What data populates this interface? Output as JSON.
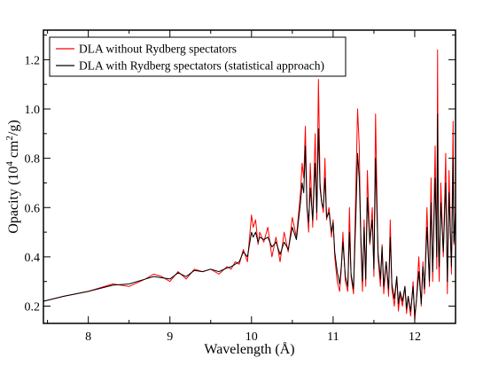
{
  "chart_data": {
    "type": "line",
    "xlabel": "Wavelength (Å)",
    "ylabel": {
      "prefix": "Opacity (10",
      "sup1": "4",
      "mid": " cm",
      "sup2": "2",
      "suffix": "/g)"
    },
    "xlim": [
      7.45,
      12.5
    ],
    "ylim": [
      0.13,
      1.32
    ],
    "xticks": [
      8,
      9,
      10,
      11,
      12
    ],
    "yticks": [
      0.2,
      0.4,
      0.6,
      0.8,
      1.0,
      1.2
    ],
    "ytick_labels": [
      "0.2",
      "0.4",
      "0.6",
      "0.8",
      "1.0",
      "1.2"
    ],
    "legend_position": "top-left",
    "grid": false,
    "series": [
      {
        "name": "DLA without Rydberg spectators",
        "color": "#ff0000",
        "x": [
          7.45,
          7.7,
          8.0,
          8.3,
          8.5,
          8.7,
          8.8,
          8.9,
          9.0,
          9.1,
          9.2,
          9.3,
          9.4,
          9.5,
          9.6,
          9.7,
          9.75,
          9.8,
          9.85,
          9.9,
          9.95,
          10.0,
          10.02,
          10.05,
          10.08,
          10.1,
          10.15,
          10.2,
          10.25,
          10.3,
          10.35,
          10.4,
          10.45,
          10.5,
          10.55,
          10.6,
          10.62,
          10.64,
          10.66,
          10.68,
          10.7,
          10.72,
          10.75,
          10.78,
          10.8,
          10.82,
          10.84,
          10.86,
          10.88,
          10.9,
          10.92,
          10.95,
          10.98,
          11.0,
          11.02,
          11.05,
          11.08,
          11.1,
          11.12,
          11.15,
          11.18,
          11.2,
          11.22,
          11.25,
          11.28,
          11.3,
          11.32,
          11.34,
          11.36,
          11.38,
          11.4,
          11.42,
          11.45,
          11.48,
          11.5,
          11.52,
          11.55,
          11.58,
          11.6,
          11.62,
          11.65,
          11.68,
          11.7,
          11.72,
          11.75,
          11.78,
          11.8,
          11.82,
          11.85,
          11.88,
          11.9,
          11.92,
          11.95,
          11.98,
          12.0,
          12.02,
          12.05,
          12.08,
          12.1,
          12.12,
          12.15,
          12.18,
          12.2,
          12.22,
          12.25,
          12.27,
          12.28,
          12.29,
          12.3,
          12.32,
          12.35,
          12.38,
          12.4,
          12.42,
          12.45,
          12.47,
          12.48,
          12.5
        ],
        "values": [
          0.22,
          0.24,
          0.26,
          0.29,
          0.28,
          0.31,
          0.33,
          0.32,
          0.3,
          0.34,
          0.31,
          0.35,
          0.34,
          0.35,
          0.33,
          0.36,
          0.35,
          0.38,
          0.37,
          0.43,
          0.38,
          0.57,
          0.52,
          0.55,
          0.45,
          0.5,
          0.46,
          0.52,
          0.4,
          0.48,
          0.38,
          0.5,
          0.42,
          0.56,
          0.48,
          0.66,
          0.78,
          0.72,
          0.93,
          0.6,
          0.5,
          0.78,
          0.52,
          0.9,
          0.55,
          1.12,
          0.7,
          0.62,
          0.58,
          0.8,
          0.55,
          0.6,
          0.48,
          0.55,
          0.4,
          0.3,
          0.26,
          0.35,
          0.5,
          0.3,
          0.26,
          0.6,
          0.32,
          0.25,
          0.7,
          1.0,
          0.85,
          0.45,
          0.26,
          0.55,
          0.28,
          0.75,
          0.45,
          0.6,
          0.32,
          0.98,
          0.4,
          0.28,
          0.45,
          0.25,
          0.38,
          0.24,
          0.55,
          0.27,
          0.2,
          0.32,
          0.18,
          0.25,
          0.2,
          0.28,
          0.17,
          0.24,
          0.16,
          0.3,
          0.14,
          0.22,
          0.4,
          0.2,
          0.38,
          0.25,
          0.6,
          0.28,
          0.72,
          0.3,
          0.85,
          0.35,
          1.24,
          0.45,
          0.3,
          0.7,
          0.4,
          0.82,
          0.25,
          0.75,
          0.33,
          0.95,
          0.45,
          0.6
        ]
      },
      {
        "name": "DLA with Rydberg spectators (statistical approach)",
        "color": "#000000",
        "x": [
          7.45,
          7.7,
          8.0,
          8.3,
          8.5,
          8.7,
          8.8,
          8.9,
          9.0,
          9.1,
          9.2,
          9.3,
          9.4,
          9.5,
          9.6,
          9.7,
          9.75,
          9.8,
          9.85,
          9.9,
          9.95,
          10.0,
          10.02,
          10.05,
          10.08,
          10.1,
          10.15,
          10.2,
          10.25,
          10.3,
          10.35,
          10.4,
          10.45,
          10.5,
          10.55,
          10.6,
          10.62,
          10.64,
          10.66,
          10.68,
          10.7,
          10.72,
          10.75,
          10.78,
          10.8,
          10.82,
          10.84,
          10.86,
          10.88,
          10.9,
          10.92,
          10.95,
          10.98,
          11.0,
          11.02,
          11.05,
          11.08,
          11.1,
          11.12,
          11.15,
          11.18,
          11.2,
          11.22,
          11.25,
          11.28,
          11.3,
          11.32,
          11.34,
          11.36,
          11.38,
          11.4,
          11.42,
          11.45,
          11.48,
          11.5,
          11.52,
          11.55,
          11.58,
          11.6,
          11.62,
          11.65,
          11.68,
          11.7,
          11.72,
          11.75,
          11.78,
          11.8,
          11.82,
          11.85,
          11.88,
          11.9,
          11.92,
          11.95,
          11.98,
          12.0,
          12.02,
          12.05,
          12.08,
          12.1,
          12.12,
          12.15,
          12.18,
          12.2,
          12.22,
          12.25,
          12.27,
          12.28,
          12.29,
          12.3,
          12.32,
          12.35,
          12.38,
          12.4,
          12.42,
          12.45,
          12.47,
          12.48,
          12.5
        ],
        "values": [
          0.22,
          0.24,
          0.26,
          0.285,
          0.29,
          0.31,
          0.32,
          0.315,
          0.31,
          0.335,
          0.32,
          0.345,
          0.34,
          0.35,
          0.34,
          0.355,
          0.36,
          0.37,
          0.38,
          0.42,
          0.4,
          0.5,
          0.48,
          0.5,
          0.46,
          0.48,
          0.47,
          0.48,
          0.44,
          0.46,
          0.41,
          0.46,
          0.43,
          0.52,
          0.47,
          0.62,
          0.7,
          0.66,
          0.85,
          0.6,
          0.54,
          0.68,
          0.55,
          0.78,
          0.58,
          0.92,
          0.68,
          0.62,
          0.6,
          0.72,
          0.56,
          0.58,
          0.5,
          0.54,
          0.42,
          0.34,
          0.29,
          0.36,
          0.46,
          0.32,
          0.28,
          0.5,
          0.33,
          0.27,
          0.58,
          0.82,
          0.72,
          0.48,
          0.3,
          0.52,
          0.31,
          0.64,
          0.46,
          0.55,
          0.35,
          0.8,
          0.42,
          0.31,
          0.44,
          0.28,
          0.38,
          0.27,
          0.48,
          0.29,
          0.23,
          0.32,
          0.21,
          0.26,
          0.22,
          0.28,
          0.19,
          0.24,
          0.18,
          0.28,
          0.16,
          0.22,
          0.34,
          0.21,
          0.36,
          0.27,
          0.52,
          0.3,
          0.62,
          0.34,
          0.72,
          0.4,
          0.98,
          0.48,
          0.36,
          0.62,
          0.42,
          0.7,
          0.3,
          0.66,
          0.36,
          0.8,
          0.46,
          0.58
        ]
      }
    ]
  }
}
